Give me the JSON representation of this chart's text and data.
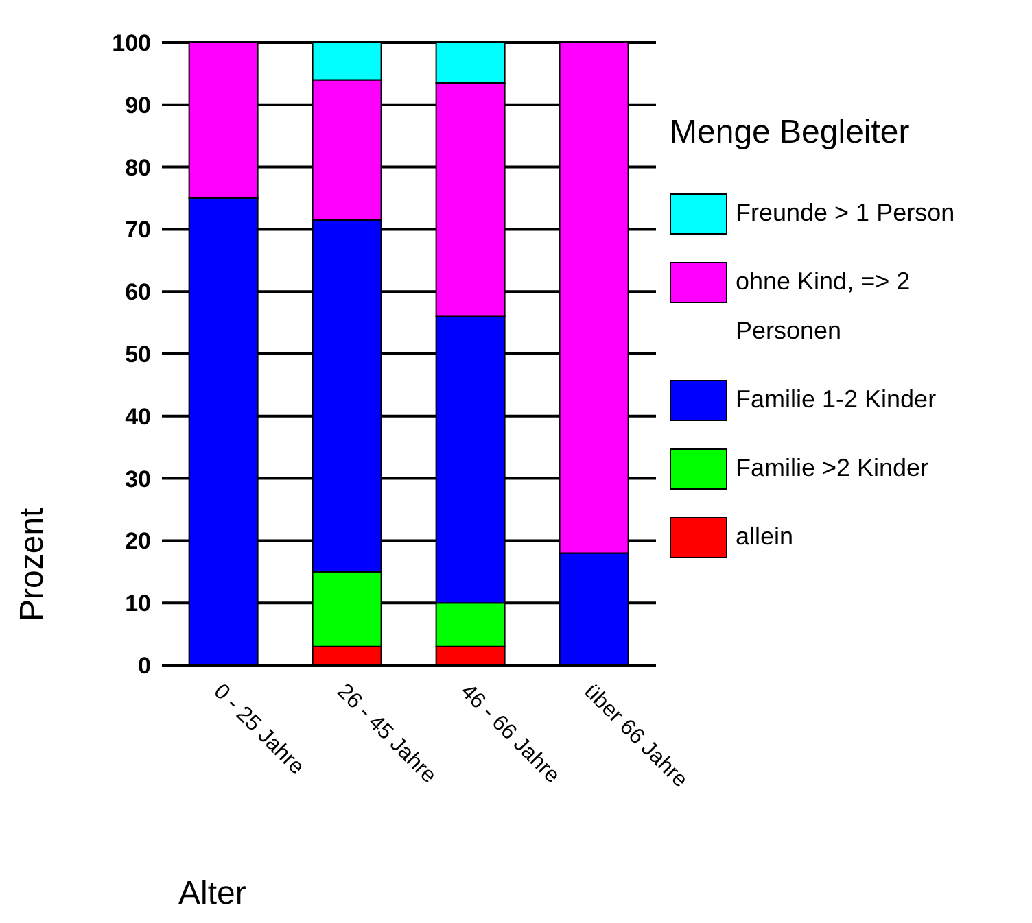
{
  "chart_data": {
    "type": "bar",
    "stacked": true,
    "ylabel": "Prozent",
    "xlabel": "Alter",
    "legend_title": "Menge Begleiter",
    "legend": "right",
    "grid": "y",
    "categories": [
      "0 - 25 Jahre",
      "26 - 45 Jahre",
      "46 - 66 Jahre",
      "über 66 Jahre"
    ],
    "ylim": [
      0,
      100
    ],
    "yticks": [
      0,
      10,
      20,
      30,
      40,
      50,
      60,
      70,
      80,
      90,
      100
    ],
    "series": [
      {
        "name": "allein",
        "color": "#ff0000",
        "values": [
          0,
          3,
          3,
          0
        ]
      },
      {
        "name": "Familie >2 Kinder",
        "color": "#00ff00",
        "values": [
          0,
          12,
          7,
          0
        ]
      },
      {
        "name": "Familie 1-2 Kinder",
        "color": "#0000ff",
        "values": [
          75,
          56.5,
          46,
          18
        ]
      },
      {
        "name": "ohne Kind, => 2 Personen",
        "color": "#ff00ff",
        "values": [
          25,
          22.5,
          37.5,
          82
        ]
      },
      {
        "name": "Freunde > 1 Person",
        "color": "#00ffff",
        "values": [
          0,
          6,
          6.5,
          0
        ]
      }
    ]
  }
}
